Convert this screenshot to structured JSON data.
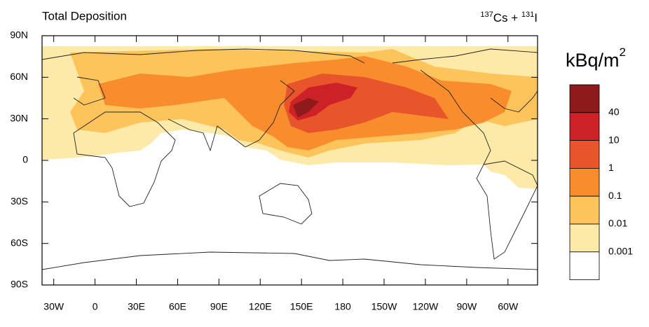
{
  "map": {
    "title": "Total Deposition",
    "right_title": [
      "137",
      "Cs + ",
      "131",
      "I"
    ],
    "unit": [
      "kBq/m",
      "2"
    ],
    "xlim": [
      -38.5,
      321.5
    ],
    "ylim": [
      -90,
      90
    ],
    "xticks": [
      {
        "value": -30,
        "label": "30W"
      },
      0,
      {
        "value": 30,
        "label": "30E"
      },
      {
        "value": 60,
        "label": "60E"
      },
      {
        "value": 90,
        "label": "90E"
      },
      {
        "value": 120,
        "label": "120E"
      },
      {
        "value": 150,
        "label": "150E"
      },
      180,
      {
        "value": 210,
        "label": "150W"
      },
      {
        "value": 240,
        "label": "120W"
      },
      {
        "value": 270,
        "label": "90W"
      },
      {
        "value": 300,
        "label": "60W"
      }
    ],
    "yticks": [
      {
        "value": 90,
        "label": "90N"
      },
      {
        "value": 60,
        "label": "60N"
      },
      {
        "value": 30,
        "label": "30N"
      },
      0,
      {
        "value": -30,
        "label": "30S"
      },
      {
        "value": -60,
        "label": "60S"
      },
      {
        "value": -90,
        "label": "90S"
      }
    ],
    "colorbar": {
      "levels": [
        40,
        10,
        1,
        0.1,
        0.01,
        0.001
      ],
      "colors": [
        "#8e1a1c",
        "#cd2127",
        "#e8552a",
        "#f98d2d",
        "#fdc45b",
        "#fdeaa8",
        "#ffffff"
      ]
    }
  }
}
